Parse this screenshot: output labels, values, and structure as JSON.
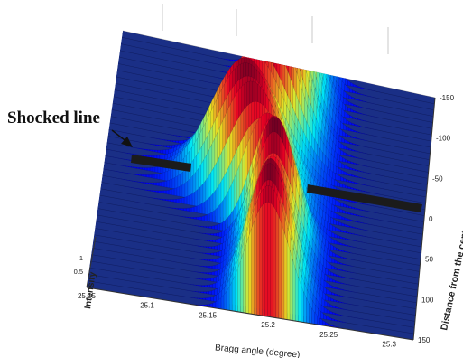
{
  "chart_data": {
    "type": "surface",
    "xlabel": "Bragg angle (degree)",
    "ylabel": "Distance from the center of the shocked",
    "zlabel": "Intensity",
    "x_ticks": [
      "25.05",
      "25.1",
      "25.15",
      "25.2",
      "25.25",
      "25.3"
    ],
    "y_ticks": [
      "-150",
      "-100",
      "-50",
      "0",
      "50",
      "100",
      "150"
    ],
    "z_ticks": [
      "1",
      "0.5"
    ],
    "xlim": [
      25.05,
      25.32
    ],
    "ylim": [
      -150,
      150
    ],
    "zlim": [
      0,
      1
    ],
    "peak_center_unshocked": 25.2,
    "peak_center_shocked_min": 25.17,
    "shocked_region": [
      -60,
      60
    ],
    "colormap": "jet",
    "annotation": "Shocked line"
  },
  "colors": {
    "surface_base": "#1a2f86",
    "marker": "#1b1b1b"
  }
}
